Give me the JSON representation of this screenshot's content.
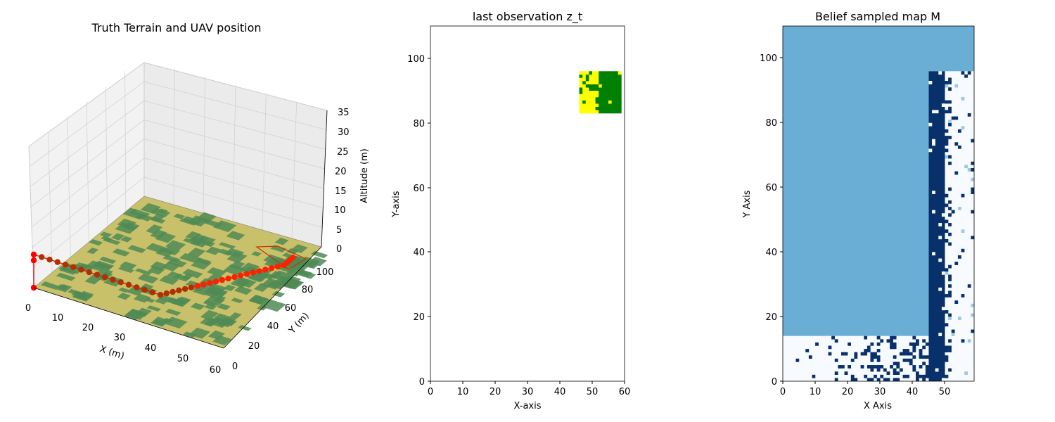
{
  "panels": [
    {
      "title": "Truth Terrain and UAV position",
      "xlabel": "X (m)",
      "ylabel": "Y (m)",
      "zlabel": "Altitude (m)",
      "x_ticks": [
        "0",
        "10",
        "20",
        "30",
        "40",
        "50",
        "60"
      ],
      "y_ticks": [
        "0",
        "20",
        "40",
        "60",
        "80",
        "100"
      ],
      "z_ticks": [
        "0",
        "5",
        "10",
        "15",
        "20",
        "25",
        "30",
        "35"
      ]
    },
    {
      "title": "last observation z_t",
      "xlabel": "X-axis",
      "ylabel": "Y-axis",
      "x_ticks": [
        "0",
        "10",
        "20",
        "30",
        "40",
        "50",
        "60"
      ],
      "y_ticks": [
        "0",
        "20",
        "40",
        "60",
        "80",
        "100"
      ]
    },
    {
      "title": "Belief sampled map M",
      "xlabel": "X Axis",
      "ylabel": "Y Axis",
      "x_ticks": [
        "0",
        "10",
        "20",
        "30",
        "40",
        "50"
      ],
      "y_ticks": [
        "0",
        "20",
        "40",
        "60",
        "80",
        "100"
      ]
    }
  ],
  "chart_data": [
    {
      "type": "scatter",
      "subtype": "3d-trajectory-over-terrain",
      "title": "Truth Terrain and UAV position",
      "xlabel": "X (m)",
      "ylabel": "Y (m)",
      "zlabel": "Altitude (m)",
      "xlim": [
        0,
        60
      ],
      "ylim": [
        0,
        110
      ],
      "zlim": [
        0,
        35
      ],
      "terrain_colors": {
        "field": "#c9c06a",
        "forest": "#4f8a55"
      },
      "uav_color": "#ff0000",
      "uav_path": [
        [
          0,
          0,
          0
        ],
        [
          0,
          0,
          7
        ],
        [
          0,
          0,
          8.5
        ],
        [
          2.5,
          0,
          8.5
        ],
        [
          5,
          0,
          8.5
        ],
        [
          7.5,
          0,
          8.5
        ],
        [
          10,
          0,
          8.5
        ],
        [
          12.5,
          0,
          8.5
        ],
        [
          15,
          0,
          8.5
        ],
        [
          17.5,
          0,
          8.5
        ],
        [
          20,
          0,
          8.5
        ],
        [
          22.5,
          0,
          8.5
        ],
        [
          25,
          0,
          8.5
        ],
        [
          27.5,
          0,
          8.5
        ],
        [
          30,
          0,
          8.5
        ],
        [
          32.5,
          0,
          8.5
        ],
        [
          35,
          0,
          8.5
        ],
        [
          37.5,
          0,
          8.5
        ],
        [
          40,
          0,
          8.5
        ],
        [
          41,
          3,
          8.5
        ],
        [
          42,
          6,
          8.5
        ],
        [
          43,
          9,
          8.5
        ],
        [
          44,
          12,
          8.5
        ],
        [
          45,
          15,
          8.5
        ],
        [
          46,
          18,
          8.5
        ],
        [
          47,
          21,
          8.5
        ],
        [
          48,
          24,
          8.5
        ],
        [
          49,
          27,
          8.5
        ],
        [
          50,
          30,
          8.5
        ],
        [
          51,
          33,
          8.5
        ],
        [
          52,
          36,
          8.5
        ],
        [
          53,
          39,
          8.5
        ],
        [
          54,
          42,
          8.5
        ],
        [
          55,
          45,
          8.5
        ],
        [
          56,
          48,
          8.5
        ],
        [
          57,
          51,
          8.5
        ],
        [
          58,
          54,
          8.5
        ],
        [
          59,
          57,
          8.5
        ],
        [
          60,
          60,
          8.5
        ],
        [
          60,
          63,
          8.5
        ],
        [
          60,
          66,
          8.5
        ],
        [
          60,
          69,
          8.5
        ]
      ],
      "grid": true
    },
    {
      "type": "heatmap",
      "title": "last observation z_t",
      "xlabel": "X-axis",
      "ylabel": "Y-axis",
      "xlim": [
        0,
        60
      ],
      "ylim": [
        0,
        110
      ],
      "observed_patch": {
        "x": [
          46,
          59
        ],
        "y": [
          83,
          96
        ]
      },
      "colors": {
        "field": "#ffff00",
        "forest": "#008000"
      },
      "grid": false
    },
    {
      "type": "heatmap",
      "title": "Belief sampled map M",
      "xlabel": "X Axis",
      "ylabel": "Y Axis",
      "xlim": [
        0,
        59
      ],
      "ylim": [
        0,
        110
      ],
      "regions": [
        {
          "x": [
            0,
            59
          ],
          "y": [
            14,
            110
          ],
          "value": 0.5,
          "color": "#6aaed6"
        },
        {
          "x": [
            0,
            59
          ],
          "y": [
            0,
            14
          ],
          "value": 0.0,
          "color": "#f7fbff"
        },
        {
          "x": [
            45,
            59
          ],
          "y": [
            0,
            96
          ],
          "value": 0.0,
          "color": "#f7fbff"
        },
        {
          "x": [
            45,
            50
          ],
          "y": [
            0,
            96
          ],
          "value": 1.0,
          "color": "#08306b"
        }
      ],
      "colormap": "Blues",
      "grid": false
    }
  ]
}
